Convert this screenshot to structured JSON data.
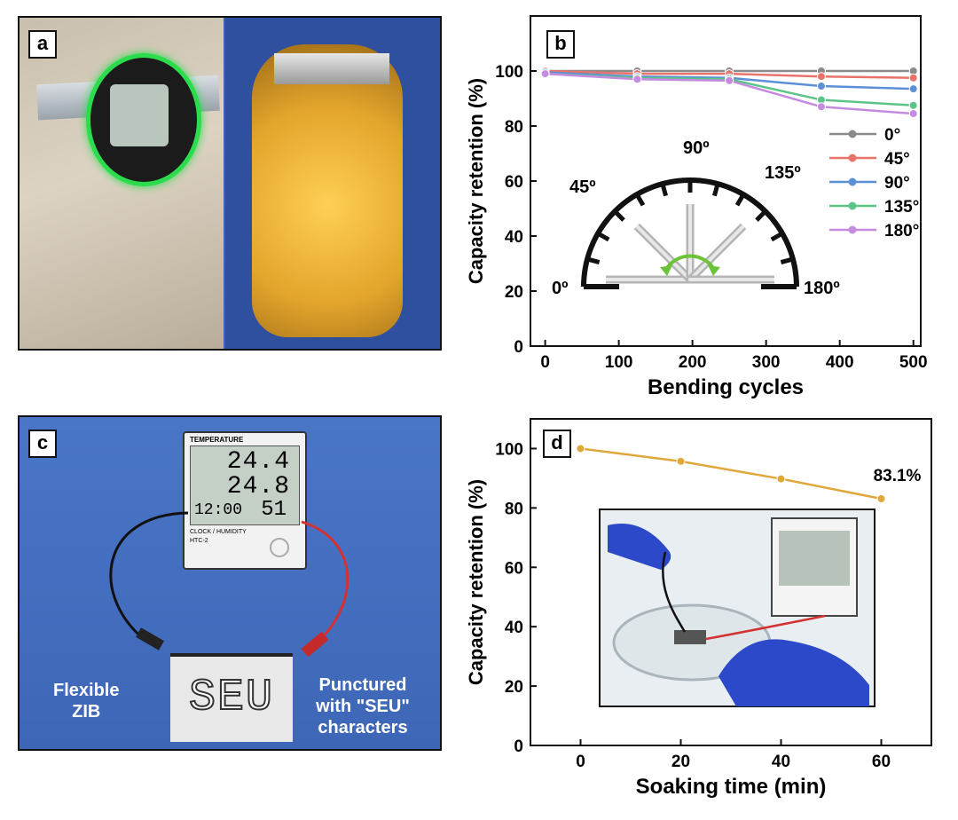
{
  "panels": {
    "a": {
      "label": "a"
    },
    "b": {
      "label": "b"
    },
    "c": {
      "label": "c",
      "thermo": {
        "top_label": "TEMPERATURE",
        "temp1": "24.4",
        "temp2": "24.8",
        "clock": "12:00",
        "humidity": "51",
        "bottom_label": "CLOCK / HUMIDITY",
        "model": "HTC-2"
      },
      "battery_text": "SEU",
      "left_caption": [
        "Flexible",
        "ZIB"
      ],
      "right_caption": [
        "Punctured",
        "with \"SEU\"",
        "characters"
      ]
    },
    "d": {
      "label": "d"
    }
  },
  "chart_data": [
    {
      "panel": "b",
      "type": "line",
      "xlabel": "Bending cycles",
      "ylabel": "Capacity retention (%)",
      "xlim": [
        -20,
        510
      ],
      "ylim": [
        0,
        120
      ],
      "xticks": [
        0,
        100,
        200,
        300,
        400,
        500
      ],
      "yticks": [
        0,
        20,
        40,
        60,
        80,
        100
      ],
      "x": [
        0,
        125,
        250,
        375,
        500
      ],
      "series": [
        {
          "name": "0°",
          "color": "#8a8a8a",
          "values": [
            100,
            100,
            100,
            100,
            100
          ]
        },
        {
          "name": "45°",
          "color": "#e8736b",
          "values": [
            100,
            99,
            99,
            98,
            97.5
          ]
        },
        {
          "name": "90°",
          "color": "#5b8fd6",
          "values": [
            99.5,
            98,
            97.5,
            94.5,
            93.5
          ]
        },
        {
          "name": "135°",
          "color": "#5cc486",
          "values": [
            99,
            97.5,
            97,
            89.5,
            87.5
          ]
        },
        {
          "name": "180°",
          "color": "#c58be0",
          "values": [
            99,
            97,
            96.5,
            87,
            84.5
          ]
        }
      ],
      "legend_position": "right",
      "inset_angles": [
        "0º",
        "45º",
        "90º",
        "135º",
        "180º"
      ]
    },
    {
      "panel": "d",
      "type": "line",
      "xlabel": "Soaking time (min)",
      "ylabel": "Capacity retention (%)",
      "xlim": [
        -10,
        70
      ],
      "ylim": [
        0,
        110
      ],
      "xticks": [
        0,
        20,
        40,
        60
      ],
      "yticks": [
        0,
        20,
        40,
        60,
        80,
        100
      ],
      "x": [
        0,
        20,
        40,
        60
      ],
      "series": [
        {
          "color": "#e0a83a",
          "values": [
            100,
            95.7,
            89.8,
            83.1
          ]
        }
      ],
      "annotation": "83.1%"
    }
  ]
}
